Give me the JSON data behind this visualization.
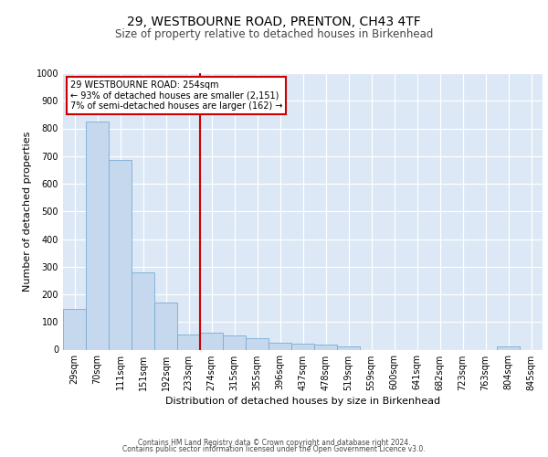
{
  "title1": "29, WESTBOURNE ROAD, PRENTON, CH43 4TF",
  "title2": "Size of property relative to detached houses in Birkenhead",
  "xlabel": "Distribution of detached houses by size in Birkenhead",
  "ylabel": "Number of detached properties",
  "footer1": "Contains HM Land Registry data © Crown copyright and database right 2024.",
  "footer2": "Contains public sector information licensed under the Open Government Licence v3.0.",
  "annotation_line1": "29 WESTBOURNE ROAD: 254sqm",
  "annotation_line2": "← 93% of detached houses are smaller (2,151)",
  "annotation_line3": "7% of semi-detached houses are larger (162) →",
  "bar_color": "#c5d8ee",
  "bar_edge_color": "#7aadd4",
  "vline_color": "#cc0000",
  "annotation_box_color": "#ffffff",
  "annotation_box_edge": "#cc0000",
  "categories": [
    "29sqm",
    "70sqm",
    "111sqm",
    "151sqm",
    "192sqm",
    "233sqm",
    "274sqm",
    "315sqm",
    "355sqm",
    "396sqm",
    "437sqm",
    "478sqm",
    "519sqm",
    "559sqm",
    "600sqm",
    "641sqm",
    "682sqm",
    "723sqm",
    "763sqm",
    "804sqm",
    "845sqm"
  ],
  "bar_heights": [
    148,
    825,
    685,
    280,
    170,
    55,
    60,
    50,
    42,
    25,
    20,
    18,
    10,
    0,
    0,
    0,
    0,
    0,
    0,
    10,
    0
  ],
  "ylim": [
    0,
    1000
  ],
  "yticks": [
    0,
    100,
    200,
    300,
    400,
    500,
    600,
    700,
    800,
    900,
    1000
  ],
  "background_color": "#dce8f5",
  "grid_color": "#ffffff",
  "title1_fontsize": 10,
  "title2_fontsize": 8.5,
  "ylabel_fontsize": 8,
  "xlabel_fontsize": 8,
  "tick_fontsize": 7,
  "footer_fontsize": 5.5
}
